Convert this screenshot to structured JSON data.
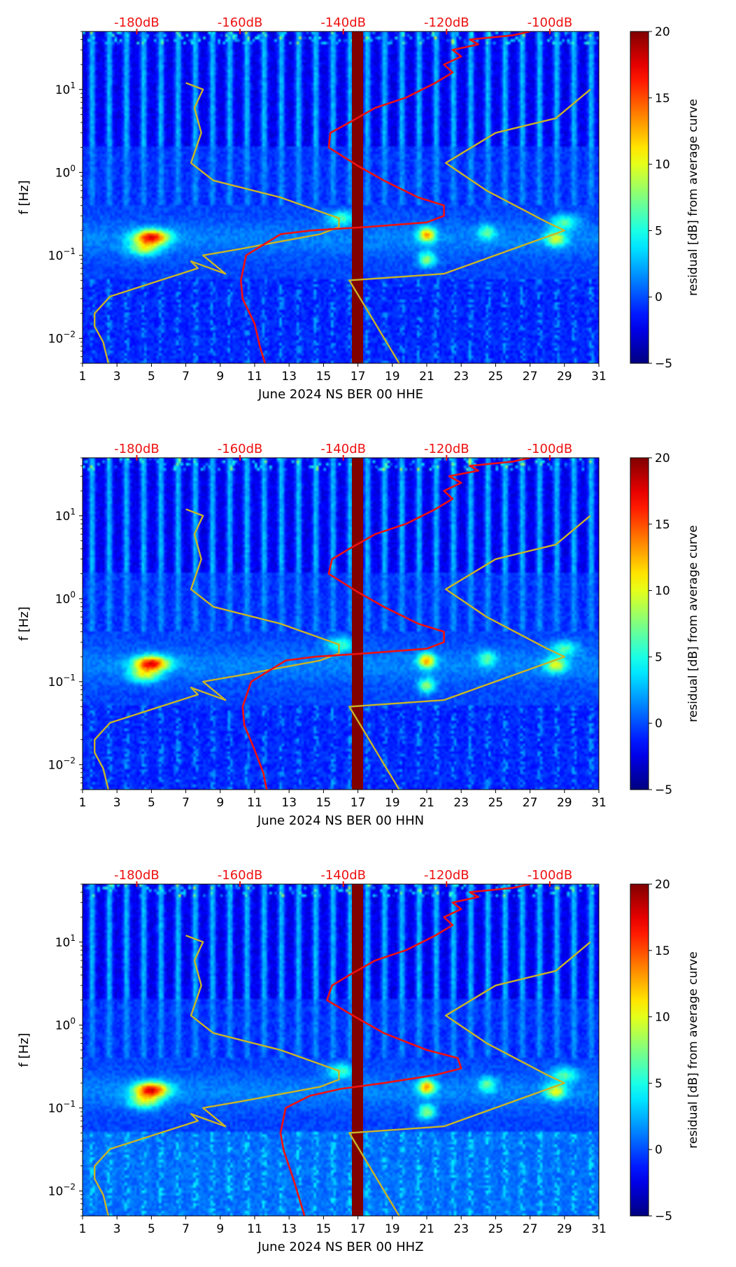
{
  "chart_data": [
    {
      "type": "heatmap",
      "xlabel": "June 2024 NS BER 00 HHE",
      "ylabel": "f [Hz]",
      "x_ticks": [
        "1",
        "3",
        "5",
        "7",
        "9",
        "11",
        "13",
        "15",
        "17",
        "19",
        "21",
        "23",
        "25",
        "27",
        "29",
        "31"
      ],
      "xlim": [
        1,
        31
      ],
      "ylim": [
        0.005,
        50
      ],
      "y_ticks": [
        {
          "value": 0.01,
          "base": "10",
          "exp": "−2"
        },
        {
          "value": 0.1,
          "base": "10",
          "exp": "−1"
        },
        {
          "value": 1,
          "base": "10",
          "exp": "0"
        },
        {
          "value": 10,
          "base": "10",
          "exp": "1"
        }
      ],
      "top_axis_ticks": [
        "-180dB",
        "-160dB",
        "-140dB",
        "-120dB",
        "-100dB"
      ],
      "top_axis_color": "#ee1111",
      "colorbar": {
        "label": "residual [dB] from average curve",
        "min": -5,
        "max": 20,
        "ticks": [
          "−5",
          "0",
          "5",
          "10",
          "15",
          "20"
        ]
      },
      "highlight_band": {
        "x_start": 16.65,
        "x_end": 17.3,
        "color": "#800000"
      },
      "series": [
        {
          "name": "reference_model",
          "color": "#c8b428",
          "x": [
            2.5,
            2.2,
            1.7,
            1.7,
            2.6,
            7.7,
            7.3,
            9.3,
            8.0,
            10.2,
            14.8,
            15.9,
            15.9,
            12.5,
            8.6,
            7.3,
            7.9,
            7.5,
            8.0,
            7.0
          ],
          "y": [
            0.005,
            0.009,
            0.014,
            0.02,
            0.032,
            0.07,
            0.085,
            0.06,
            0.1,
            0.12,
            0.18,
            0.22,
            0.28,
            0.5,
            0.8,
            1.3,
            3.0,
            6.0,
            10,
            12
          ]
        },
        {
          "name": "reference_model_high",
          "color": "#c8b428",
          "x": [
            19.4,
            16.5,
            22.0,
            29.0,
            28.0,
            24.5,
            22.1,
            25.0,
            28.5,
            30.5
          ],
          "y": [
            0.005,
            0.05,
            0.06,
            0.2,
            0.25,
            0.6,
            1.3,
            3.0,
            4.5,
            10
          ]
        },
        {
          "name": "median_psd",
          "color": "#ee1111",
          "x": [
            11.6,
            11.3,
            11.0,
            10.3,
            10.2,
            10.5,
            12.5,
            14.3,
            17.5,
            21.0,
            22.0,
            22.0,
            20.5,
            18.5,
            17.0,
            15.3,
            15.4,
            16.5,
            18.0,
            19.8,
            21.5,
            22.5,
            22.0,
            23.0,
            22.5,
            24.0,
            23.5,
            26.0,
            27.0
          ],
          "y": [
            0.005,
            0.008,
            0.015,
            0.03,
            0.05,
            0.1,
            0.18,
            0.2,
            0.22,
            0.25,
            0.3,
            0.4,
            0.5,
            0.8,
            1.2,
            2.0,
            3.0,
            4.0,
            6.0,
            8.0,
            12,
            16,
            20,
            25,
            30,
            35,
            40,
            45,
            50
          ]
        }
      ]
    },
    {
      "type": "heatmap",
      "xlabel": "June 2024 NS BER 00 HHN",
      "ylabel": "f [Hz]",
      "x_ticks": [
        "1",
        "3",
        "5",
        "7",
        "9",
        "11",
        "13",
        "15",
        "17",
        "19",
        "21",
        "23",
        "25",
        "27",
        "29",
        "31"
      ],
      "xlim": [
        1,
        31
      ],
      "ylim": [
        0.005,
        50
      ],
      "y_ticks": [
        {
          "value": 0.01,
          "base": "10",
          "exp": "−2"
        },
        {
          "value": 0.1,
          "base": "10",
          "exp": "−1"
        },
        {
          "value": 1,
          "base": "10",
          "exp": "0"
        },
        {
          "value": 10,
          "base": "10",
          "exp": "1"
        }
      ],
      "top_axis_ticks": [
        "-180dB",
        "-160dB",
        "-140dB",
        "-120dB",
        "-100dB"
      ],
      "top_axis_color": "#ee1111",
      "colorbar": {
        "label": "residual [dB] from average curve",
        "min": -5,
        "max": 20,
        "ticks": [
          "−5",
          "0",
          "5",
          "10",
          "15",
          "20"
        ]
      },
      "highlight_band": {
        "x_start": 16.65,
        "x_end": 17.3,
        "color": "#800000"
      },
      "series": [
        {
          "name": "reference_model",
          "color": "#c8b428",
          "x": [
            2.5,
            2.2,
            1.7,
            1.7,
            2.6,
            7.7,
            7.3,
            9.3,
            8.0,
            10.2,
            14.8,
            15.9,
            15.9,
            12.5,
            8.6,
            7.3,
            7.9,
            7.5,
            8.0,
            7.0
          ],
          "y": [
            0.005,
            0.009,
            0.014,
            0.02,
            0.032,
            0.07,
            0.085,
            0.06,
            0.1,
            0.12,
            0.18,
            0.22,
            0.28,
            0.5,
            0.8,
            1.3,
            3.0,
            6.0,
            10,
            12
          ]
        },
        {
          "name": "reference_model_high",
          "color": "#c8b428",
          "x": [
            19.4,
            16.5,
            22.0,
            29.0,
            28.0,
            24.5,
            22.1,
            25.0,
            28.5,
            30.5
          ],
          "y": [
            0.005,
            0.05,
            0.06,
            0.2,
            0.25,
            0.6,
            1.3,
            3.0,
            4.5,
            10
          ]
        },
        {
          "name": "median_psd",
          "color": "#ee1111",
          "x": [
            11.7,
            11.5,
            11.0,
            10.4,
            10.3,
            10.8,
            12.8,
            14.5,
            17.5,
            21.0,
            22.0,
            22.0,
            20.5,
            18.5,
            17.0,
            15.3,
            15.5,
            16.5,
            18.0,
            19.8,
            21.5,
            22.5,
            22.0,
            23.0,
            22.3,
            24.0,
            23.5,
            26.0,
            27.0
          ],
          "y": [
            0.005,
            0.008,
            0.015,
            0.03,
            0.05,
            0.1,
            0.18,
            0.2,
            0.22,
            0.25,
            0.3,
            0.4,
            0.5,
            0.8,
            1.2,
            2.0,
            3.0,
            4.0,
            6.0,
            8.0,
            12,
            16,
            20,
            25,
            30,
            35,
            40,
            45,
            50
          ]
        }
      ]
    },
    {
      "type": "heatmap",
      "xlabel": "June 2024 NS BER 00 HHZ",
      "ylabel": "f [Hz]",
      "x_ticks": [
        "1",
        "3",
        "5",
        "7",
        "9",
        "11",
        "13",
        "15",
        "17",
        "19",
        "21",
        "23",
        "25",
        "27",
        "29",
        "31"
      ],
      "xlim": [
        1,
        31
      ],
      "ylim": [
        0.005,
        50
      ],
      "y_ticks": [
        {
          "value": 0.01,
          "base": "10",
          "exp": "−2"
        },
        {
          "value": 0.1,
          "base": "10",
          "exp": "−1"
        },
        {
          "value": 1,
          "base": "10",
          "exp": "0"
        },
        {
          "value": 10,
          "base": "10",
          "exp": "1"
        }
      ],
      "top_axis_ticks": [
        "-180dB",
        "-160dB",
        "-140dB",
        "-120dB",
        "-100dB"
      ],
      "top_axis_color": "#ee1111",
      "colorbar": {
        "label": "residual [dB] from average curve",
        "min": -5,
        "max": 20,
        "ticks": [
          "−5",
          "0",
          "5",
          "10",
          "15",
          "20"
        ]
      },
      "highlight_band": {
        "x_start": 16.65,
        "x_end": 17.3,
        "color": "#800000"
      },
      "series": [
        {
          "name": "reference_model",
          "color": "#c8b428",
          "x": [
            2.5,
            2.2,
            1.7,
            1.7,
            2.6,
            7.7,
            7.3,
            9.3,
            8.0,
            10.2,
            14.8,
            15.9,
            15.9,
            12.5,
            8.6,
            7.3,
            7.9,
            7.5,
            8.0,
            7.0
          ],
          "y": [
            0.005,
            0.009,
            0.014,
            0.02,
            0.032,
            0.07,
            0.085,
            0.06,
            0.1,
            0.12,
            0.18,
            0.22,
            0.28,
            0.5,
            0.8,
            1.3,
            3.0,
            6.0,
            10,
            12
          ]
        },
        {
          "name": "reference_model_high",
          "color": "#c8b428",
          "x": [
            19.4,
            16.5,
            22.0,
            29.0,
            28.0,
            24.5,
            22.1,
            25.0,
            28.5,
            30.5
          ],
          "y": [
            0.005,
            0.05,
            0.06,
            0.2,
            0.25,
            0.6,
            1.3,
            3.0,
            4.5,
            10
          ]
        },
        {
          "name": "median_psd",
          "color": "#ee1111",
          "x": [
            13.9,
            13.6,
            13.2,
            12.7,
            12.5,
            12.8,
            14.2,
            16.0,
            18.5,
            21.5,
            23.0,
            22.8,
            21.0,
            18.5,
            17.0,
            15.2,
            15.5,
            16.5,
            18.0,
            19.8,
            21.5,
            22.5,
            22.0,
            23.0,
            22.5,
            24.0,
            23.5,
            26.0,
            27.0
          ],
          "y": [
            0.005,
            0.008,
            0.015,
            0.03,
            0.05,
            0.1,
            0.14,
            0.17,
            0.2,
            0.25,
            0.3,
            0.4,
            0.5,
            0.8,
            1.2,
            2.0,
            3.0,
            4.0,
            6.0,
            8.0,
            12,
            16,
            20,
            25,
            30,
            35,
            40,
            45,
            50
          ]
        }
      ]
    }
  ]
}
